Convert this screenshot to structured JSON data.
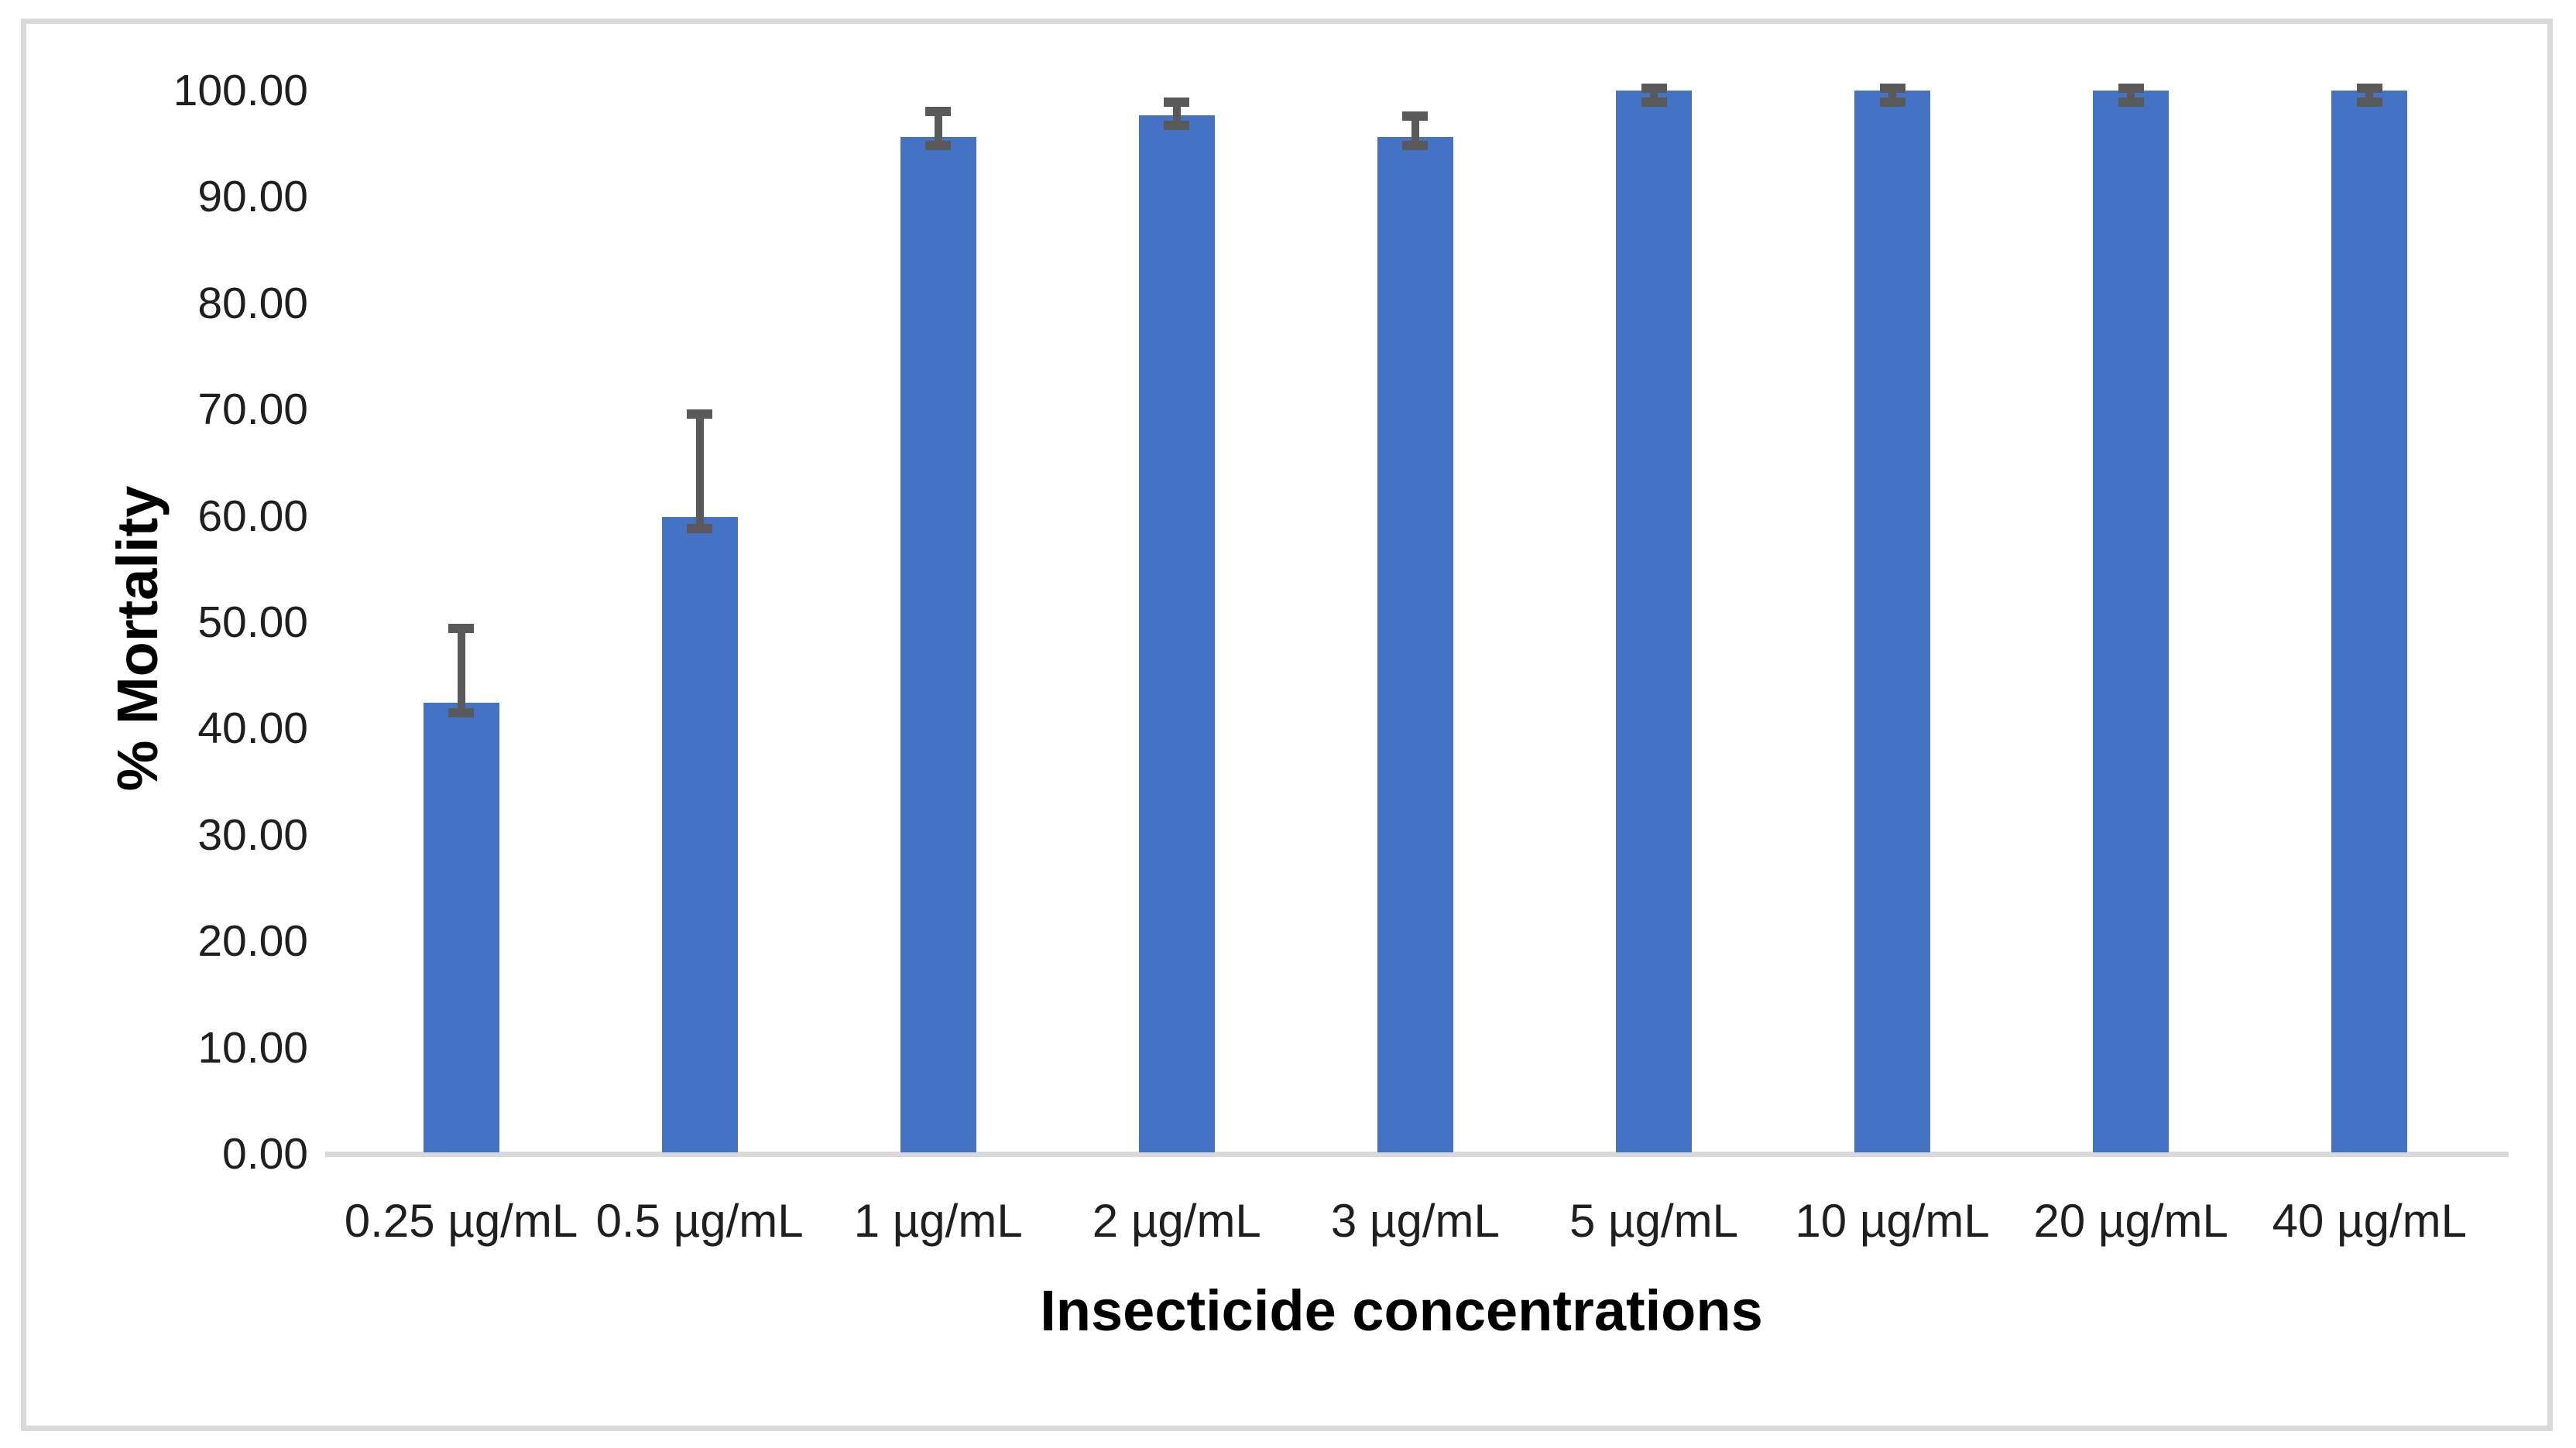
{
  "figure": {
    "background_color": "#ffffff",
    "border_color": "#d9d9d9"
  },
  "chart_data": {
    "type": "bar",
    "title": "",
    "xlabel": "Insecticide concentrations",
    "ylabel": "% Mortality",
    "categories": [
      "0.25 µg/mL",
      "0.5 µg/mL",
      "1 µg/mL",
      "2 µg/mL",
      "3 µg/mL",
      "5 µg/mL",
      "10 µg/mL",
      "20 µg/mL",
      "40 µg/mL"
    ],
    "values": [
      42.4,
      59.9,
      95.6,
      97.7,
      95.6,
      100.0,
      100.0,
      100.0,
      100.0
    ],
    "error_whisker_top": [
      49.4,
      69.6,
      98.0,
      98.9,
      97.6,
      100.2,
      100.2,
      100.2,
      100.2
    ],
    "error_whisker_bottom": [
      41.5,
      58.8,
      94.8,
      96.7,
      94.8,
      98.9,
      98.9,
      98.9,
      98.9
    ],
    "ylim": [
      0,
      100
    ],
    "ytick_step": 10,
    "ytick_labels": [
      "0.00",
      "10.00",
      "20.00",
      "30.00",
      "40.00",
      "50.00",
      "60.00",
      "70.00",
      "80.00",
      "90.00",
      "100.00"
    ],
    "grid": false,
    "legend": "none",
    "bar_color": "#4472C4",
    "error_bar_color": "#595959",
    "axis_line_color": "#d9d9d9"
  }
}
